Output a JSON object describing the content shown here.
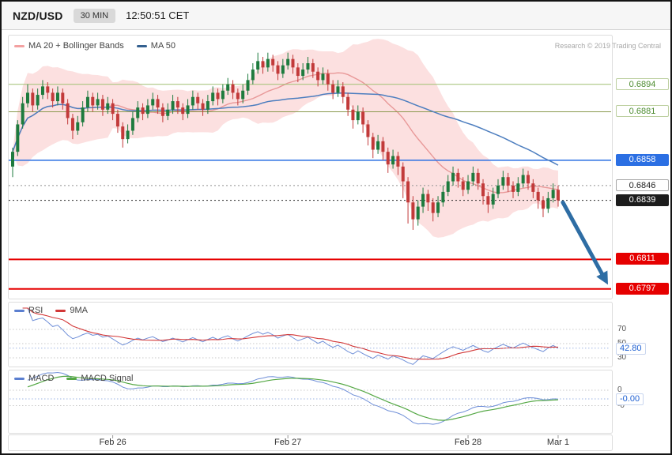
{
  "header": {
    "symbol": "NZD/USD",
    "timeframe": "30 MIN",
    "clock": "12:50:51 CET"
  },
  "attribution": "Research © 2019 Trading Central",
  "legends": {
    "main": [
      {
        "label": "MA 20 + Bollinger Bands",
        "color": "#f3a1a1"
      },
      {
        "label": "MA 50",
        "color": "#33608f"
      }
    ],
    "rsi": [
      {
        "label": "RSI",
        "color": "#5b7fd0"
      },
      {
        "label": "9MA",
        "color": "#d23737"
      }
    ],
    "macd": [
      {
        "label": "MACD",
        "color": "#5b7fd0"
      },
      {
        "label": "MACD Signal",
        "color": "#55a845"
      }
    ]
  },
  "levels": [
    {
      "label": "0.6894",
      "price": 0.6894,
      "style": "green-outline",
      "line_color": "#9fbf72",
      "line_style": "solid",
      "line_width": 1
    },
    {
      "label": "0.6881",
      "price": 0.6881,
      "style": "green-outline",
      "line_color": "#8a9a4e",
      "line_style": "solid",
      "line_width": 1
    },
    {
      "label": "0.6858",
      "price": 0.6858,
      "style": "blue-filled",
      "line_color": "#2b6fe3",
      "line_style": "solid",
      "line_width": 1.5
    },
    {
      "label": "0.6846",
      "price": 0.6846,
      "style": "plain-outline",
      "line_color": "#909090",
      "line_style": "dotted",
      "line_width": 1
    },
    {
      "label": "0.6839",
      "price": 0.6839,
      "style": "black-filled",
      "line_color": "#2a2a2a",
      "line_style": "dotted",
      "line_width": 1
    },
    {
      "label": "0.6811",
      "price": 0.6811,
      "style": "red-filled",
      "line_color": "#e60000",
      "line_style": "solid",
      "line_width": 2
    },
    {
      "label": "0.6797",
      "price": 0.6797,
      "style": "red-filled",
      "line_color": "#e60000",
      "line_style": "solid",
      "line_width": 2
    }
  ],
  "rsi_panel": {
    "ticks": [
      {
        "value": 70,
        "label": "70"
      },
      {
        "value": 50,
        "label": "50"
      },
      {
        "value": 30,
        "label": "30"
      }
    ],
    "last_value": 42.8,
    "last_label": "42.80"
  },
  "macd_panel": {
    "ticks": [
      {
        "value": 0,
        "label": "0"
      },
      {
        "value": -0.00065,
        "label": "-0"
      }
    ],
    "last_value": -0.0008,
    "last_label": "-0.00"
  },
  "x_axis": {
    "ticks": [
      {
        "label": "Feb 26",
        "index": 20
      },
      {
        "label": "Feb 27",
        "index": 55
      },
      {
        "label": "Feb 28",
        "index": 91
      },
      {
        "label": "Mar 1",
        "index": 109
      }
    ]
  },
  "arrow": {
    "from_price": 0.6838,
    "to_price": 0.6799,
    "color": "#2e6da4"
  },
  "colors": {
    "candle_up": "#1e7b3e",
    "candle_down": "#c23a3a",
    "ma20": "#e89898",
    "band_fill": "rgba(246,166,166,0.35)",
    "ma50": "#4d7ebf",
    "rsi": "#6f8fd8",
    "rsi_ma": "#d23737",
    "macd": "#6f8fd8",
    "macd_signal": "#55a845"
  },
  "chart_data": {
    "type": "candlestick",
    "symbol": "NZD/USD",
    "interval": "30 MIN",
    "overlays": [
      "MA 20 + Bollinger Bands",
      "MA 50"
    ],
    "price_levels": [
      0.6894,
      0.6881,
      0.6858,
      0.6846,
      0.6839,
      0.6811,
      0.6797
    ],
    "x_range": [
      "Feb 26",
      "Mar 1"
    ],
    "price_scale": 10000,
    "candles_ohlc": [
      [
        6855,
        6864,
        6850,
        6862
      ],
      [
        6862,
        6877,
        6860,
        6875
      ],
      [
        6875,
        6888,
        6873,
        6885
      ],
      [
        6885,
        6894,
        6883,
        6890
      ],
      [
        6890,
        6892,
        6881,
        6884
      ],
      [
        6884,
        6892,
        6882,
        6889
      ],
      [
        6889,
        6896,
        6887,
        6893
      ],
      [
        6893,
        6895,
        6887,
        6890
      ],
      [
        6890,
        6892,
        6883,
        6886
      ],
      [
        6886,
        6893,
        6884,
        6890
      ],
      [
        6890,
        6892,
        6882,
        6885
      ],
      [
        6885,
        6887,
        6875,
        6878
      ],
      [
        6878,
        6880,
        6868,
        6872
      ],
      [
        6872,
        6879,
        6870,
        6876
      ],
      [
        6876,
        6886,
        6874,
        6883
      ],
      [
        6883,
        6891,
        6881,
        6888
      ],
      [
        6888,
        6890,
        6881,
        6884
      ],
      [
        6884,
        6890,
        6882,
        6887
      ],
      [
        6887,
        6889,
        6879,
        6882
      ],
      [
        6882,
        6888,
        6880,
        6885
      ],
      [
        6885,
        6887,
        6877,
        6880
      ],
      [
        6880,
        6882,
        6871,
        6874
      ],
      [
        6874,
        6876,
        6864,
        6868
      ],
      [
        6868,
        6875,
        6866,
        6872
      ],
      [
        6872,
        6881,
        6870,
        6878
      ],
      [
        6878,
        6886,
        6876,
        6883
      ],
      [
        6883,
        6885,
        6877,
        6880
      ],
      [
        6880,
        6887,
        6878,
        6884
      ],
      [
        6884,
        6890,
        6882,
        6887
      ],
      [
        6887,
        6889,
        6880,
        6883
      ],
      [
        6883,
        6885,
        6876,
        6879
      ],
      [
        6879,
        6885,
        6877,
        6882
      ],
      [
        6882,
        6889,
        6880,
        6886
      ],
      [
        6886,
        6888,
        6880,
        6883
      ],
      [
        6883,
        6885,
        6877,
        6880
      ],
      [
        6880,
        6887,
        6878,
        6884
      ],
      [
        6884,
        6891,
        6882,
        6888
      ],
      [
        6888,
        6890,
        6882,
        6885
      ],
      [
        6885,
        6887,
        6879,
        6882
      ],
      [
        6882,
        6889,
        6880,
        6886
      ],
      [
        6886,
        6893,
        6884,
        6890
      ],
      [
        6890,
        6892,
        6884,
        6887
      ],
      [
        6887,
        6894,
        6885,
        6891
      ],
      [
        6891,
        6897,
        6889,
        6894
      ],
      [
        6894,
        6896,
        6887,
        6890
      ],
      [
        6890,
        6892,
        6884,
        6887
      ],
      [
        6887,
        6894,
        6885,
        6891
      ],
      [
        6891,
        6899,
        6889,
        6896
      ],
      [
        6896,
        6904,
        6894,
        6901
      ],
      [
        6901,
        6909,
        6899,
        6905
      ],
      [
        6905,
        6907,
        6899,
        6902
      ],
      [
        6902,
        6909,
        6900,
        6906
      ],
      [
        6906,
        6908,
        6900,
        6903
      ],
      [
        6903,
        6905,
        6896,
        6899
      ],
      [
        6899,
        6906,
        6897,
        6903
      ],
      [
        6903,
        6909,
        6901,
        6906
      ],
      [
        6906,
        6908,
        6899,
        6902
      ],
      [
        6902,
        6904,
        6895,
        6898
      ],
      [
        6898,
        6904,
        6896,
        6901
      ],
      [
        6901,
        6907,
        6899,
        6904
      ],
      [
        6904,
        6906,
        6897,
        6900
      ],
      [
        6900,
        6902,
        6893,
        6896
      ],
      [
        6896,
        6902,
        6894,
        6899
      ],
      [
        6899,
        6901,
        6891,
        6894
      ],
      [
        6894,
        6896,
        6887,
        6890
      ],
      [
        6890,
        6896,
        6888,
        6893
      ],
      [
        6893,
        6895,
        6885,
        6888
      ],
      [
        6888,
        6890,
        6879,
        6882
      ],
      [
        6882,
        6884,
        6873,
        6877
      ],
      [
        6877,
        6884,
        6875,
        6881
      ],
      [
        6881,
        6883,
        6871,
        6875
      ],
      [
        6875,
        6877,
        6865,
        6869
      ],
      [
        6869,
        6871,
        6859,
        6863
      ],
      [
        6863,
        6870,
        6861,
        6867
      ],
      [
        6867,
        6869,
        6858,
        6862
      ],
      [
        6862,
        6864,
        6852,
        6856
      ],
      [
        6856,
        6863,
        6854,
        6860
      ],
      [
        6860,
        6862,
        6851,
        6855
      ],
      [
        6855,
        6857,
        6840,
        6848
      ],
      [
        6848,
        6850,
        6828,
        6838
      ],
      [
        6838,
        6841,
        6825,
        6830
      ],
      [
        6830,
        6839,
        6827,
        6836
      ],
      [
        6836,
        6845,
        6833,
        6842
      ],
      [
        6842,
        6844,
        6834,
        6838
      ],
      [
        6838,
        6840,
        6829,
        6833
      ],
      [
        6833,
        6841,
        6831,
        6838
      ],
      [
        6838,
        6846,
        6836,
        6843
      ],
      [
        6843,
        6851,
        6841,
        6848
      ],
      [
        6848,
        6855,
        6846,
        6852
      ],
      [
        6852,
        6854,
        6845,
        6848
      ],
      [
        6848,
        6850,
        6841,
        6844
      ],
      [
        6844,
        6851,
        6842,
        6848
      ],
      [
        6848,
        6855,
        6846,
        6852
      ],
      [
        6852,
        6854,
        6844,
        6847
      ],
      [
        6847,
        6849,
        6837,
        6841
      ],
      [
        6841,
        6843,
        6833,
        6837
      ],
      [
        6837,
        6845,
        6835,
        6842
      ],
      [
        6842,
        6849,
        6840,
        6846
      ],
      [
        6846,
        6853,
        6844,
        6850
      ],
      [
        6850,
        6852,
        6843,
        6846
      ],
      [
        6846,
        6848,
        6840,
        6843
      ],
      [
        6843,
        6850,
        6841,
        6847
      ],
      [
        6847,
        6854,
        6845,
        6851
      ],
      [
        6851,
        6853,
        6844,
        6847
      ],
      [
        6847,
        6849,
        6840,
        6843
      ],
      [
        6843,
        6845,
        6835,
        6839
      ],
      [
        6839,
        6841,
        6831,
        6835
      ],
      [
        6835,
        6843,
        6833,
        6840
      ],
      [
        6840,
        6847,
        6838,
        6844
      ],
      [
        6844,
        6846,
        6836,
        6839
      ]
    ],
    "indicators": {
      "rsi": {
        "period": 14,
        "smoothing_ma": 9,
        "guides": [
          70,
          50,
          30
        ],
        "last": 42.8
      },
      "macd": {
        "last": -0.0
      }
    }
  }
}
